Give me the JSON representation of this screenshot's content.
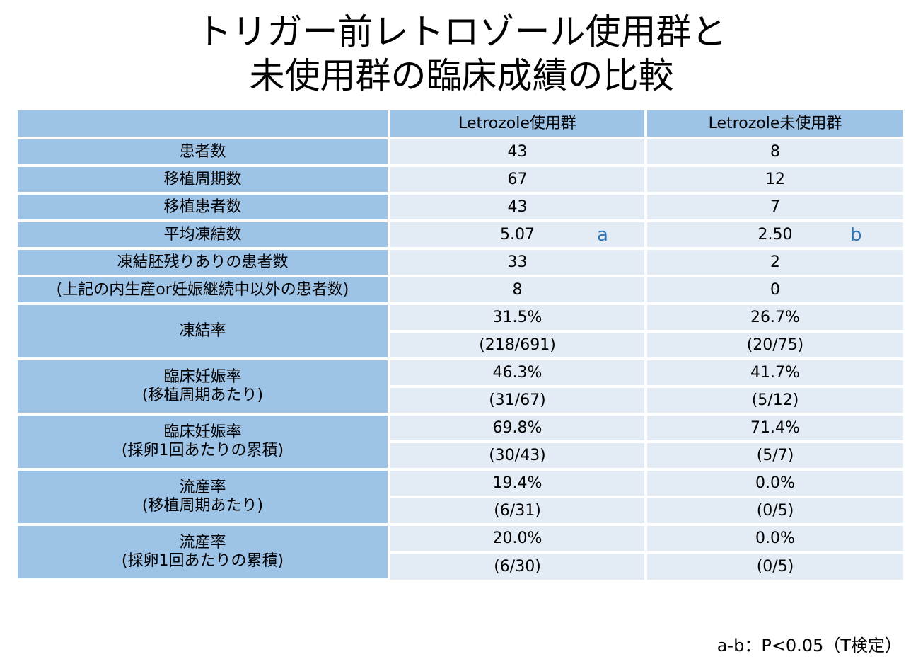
{
  "title": {
    "line1": "トリガー前レトロゾール使用群と",
    "line2": "未使用群の臨床成績の比較"
  },
  "table": {
    "header": {
      "label": "",
      "group_a": "Letrozole使用群",
      "group_b": "Letrozole未使用群"
    },
    "single_rows": [
      {
        "label": "患者数",
        "a": "43",
        "b": "8"
      },
      {
        "label": "移植周期数",
        "a": "67",
        "b": "12"
      },
      {
        "label": "移植患者数",
        "a": "43",
        "b": "7"
      },
      {
        "label": "平均凍結数",
        "a": "5.07",
        "b": "2.50",
        "mark_a": "a",
        "mark_b": "b"
      },
      {
        "label": "凍結胚残りありの患者数",
        "a": "33",
        "b": "2"
      },
      {
        "label": "(上記の内生産or妊娠継続中以外の患者数)",
        "a": "8",
        "b": "0"
      }
    ],
    "double_rows": [
      {
        "label_line1": "凍結率",
        "label_line2": "",
        "a_rate": "31.5%",
        "a_frac": "(218/691)",
        "b_rate": "26.7%",
        "b_frac": "(20/75)"
      },
      {
        "label_line1": "臨床妊娠率",
        "label_line2": "(移植周期あたり)",
        "a_rate": "46.3%",
        "a_frac": "(31/67)",
        "b_rate": "41.7%",
        "b_frac": "(5/12)"
      },
      {
        "label_line1": "臨床妊娠率",
        "label_line2": "(採卵1回あたりの累積)",
        "a_rate": "69.8%",
        "a_frac": "(30/43)",
        "b_rate": "71.4%",
        "b_frac": "(5/7)"
      },
      {
        "label_line1": "流産率",
        "label_line2": "(移植周期あたり)",
        "a_rate": "19.4%",
        "a_frac": "(6/31)",
        "b_rate": "0.0%",
        "b_frac": "(0/5)"
      },
      {
        "label_line1": "流産率",
        "label_line2": "(採卵1回あたりの累積)",
        "a_rate": "20.0%",
        "a_frac": "(6/30)",
        "b_rate": "0.0%",
        "b_frac": "(0/5)"
      }
    ]
  },
  "footnote": "a-b：P<0.05（T検定）",
  "colors": {
    "label_fill": "#9dc3e6",
    "value_fill": "#e3ecf5",
    "mark_color": "#2e75b6"
  }
}
